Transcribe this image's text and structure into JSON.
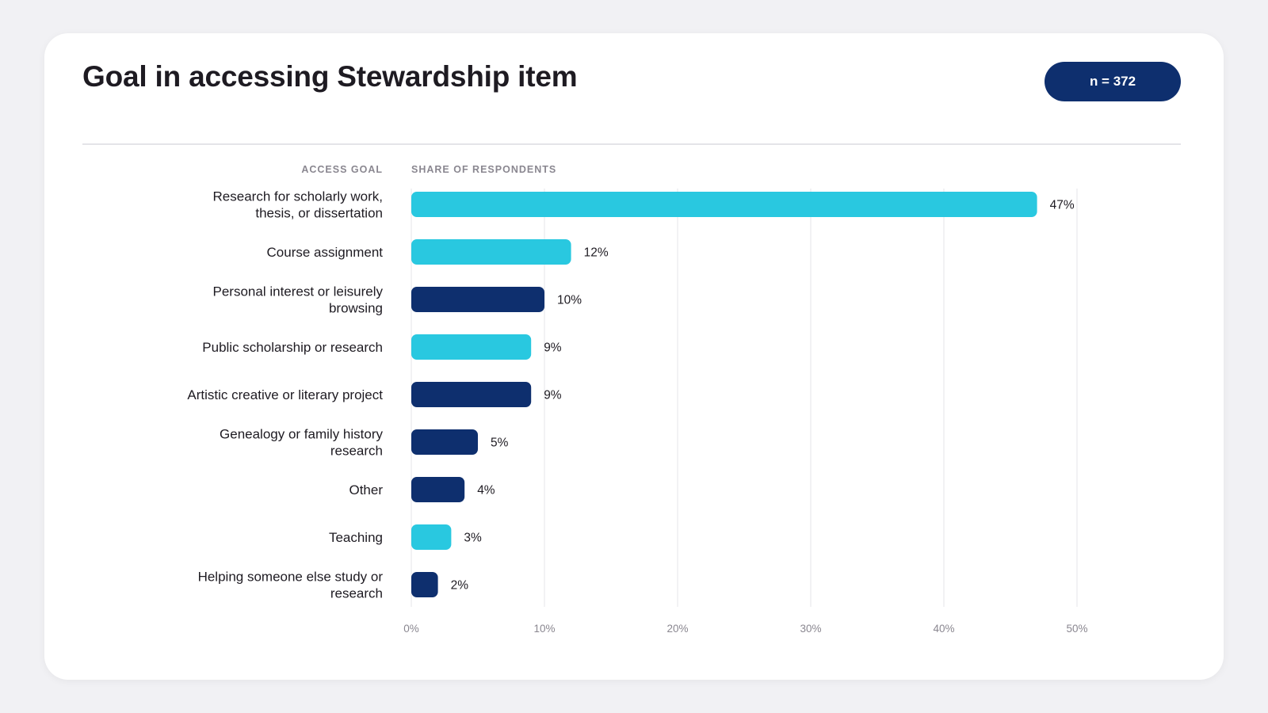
{
  "page": {
    "title": "Goal in accessing Stewardship item",
    "sample_size_label": "n = 372"
  },
  "chart_data": {
    "type": "bar",
    "orientation": "horizontal",
    "category_header": "ACCESS GOAL",
    "value_header": "SHARE OF RESPONDENTS",
    "categories": [
      [
        "Research for scholarly work,",
        "thesis, or dissertation"
      ],
      [
        "Course assignment"
      ],
      [
        "Personal interest or leisurely",
        "browsing"
      ],
      [
        "Public scholarship or research"
      ],
      [
        "Artistic creative or literary project"
      ],
      [
        "Genealogy or family history",
        "research"
      ],
      [
        "Other"
      ],
      [
        "Teaching"
      ],
      [
        "Helping someone else study or",
        "research"
      ]
    ],
    "values": [
      47,
      12,
      10,
      9,
      9,
      5,
      4,
      3,
      2
    ],
    "value_labels": [
      "47%",
      "12%",
      "10%",
      "9%",
      "9%",
      "5%",
      "4%",
      "3%",
      "2%"
    ],
    "bar_colors": [
      "#29c8e0",
      "#29c8e0",
      "#0e2f6e",
      "#29c8e0",
      "#0e2f6e",
      "#0e2f6e",
      "#0e2f6e",
      "#29c8e0",
      "#0e2f6e"
    ],
    "xlim": [
      0,
      50
    ],
    "xticks": [
      0,
      10,
      20,
      30,
      40,
      50
    ],
    "xtick_labels": [
      "0%",
      "10%",
      "20%",
      "30%",
      "40%",
      "50%"
    ],
    "grid": true,
    "legend": "none"
  },
  "colors": {
    "accent_light": "#29c8e0",
    "accent_dark": "#0e2f6e",
    "text": "#1e1b22",
    "muted": "#8a8790",
    "grid": "#e6e6ea"
  }
}
